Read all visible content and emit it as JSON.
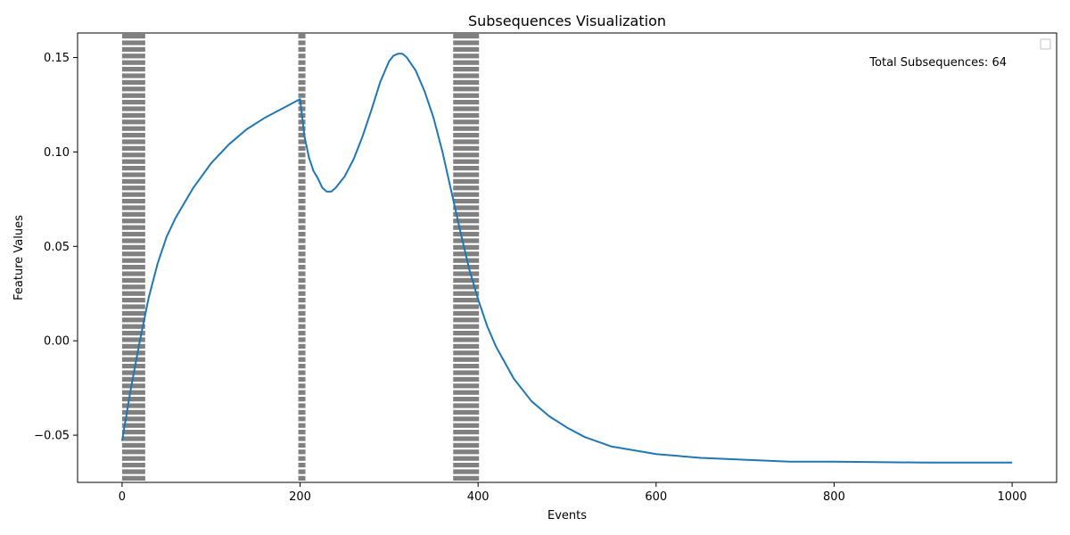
{
  "chart_data": {
    "type": "line",
    "title": "Subsequences Visualization",
    "xlabel": "Events",
    "ylabel": "Feature Values",
    "xlim": [
      -50,
      1050
    ],
    "ylim": [
      -0.075,
      0.163
    ],
    "x_ticks": [
      0,
      200,
      400,
      600,
      800,
      1000
    ],
    "x_tick_labels": [
      "0",
      "200",
      "400",
      "600",
      "800",
      "1000"
    ],
    "y_ticks": [
      -0.05,
      0.0,
      0.05,
      0.1,
      0.15
    ],
    "y_tick_labels": [
      "−0.05",
      "0.00",
      "0.05",
      "0.10",
      "0.15"
    ],
    "annotation": "Total Subsequences: 64",
    "legend": {
      "placement": "top-right",
      "entries": []
    },
    "grid": false,
    "series_color": "#1f77b4",
    "shade_color": "#808080",
    "shaded_regions": [
      {
        "x_start": 0,
        "x_end": 26
      },
      {
        "x_start": 198,
        "x_end": 206
      },
      {
        "x_start": 372,
        "x_end": 401
      }
    ],
    "series": [
      {
        "x": [
          0,
          10,
          20,
          30,
          40,
          50,
          60,
          80,
          100,
          120,
          140,
          160,
          180,
          200,
          205,
          210,
          215,
          220,
          225,
          230,
          235,
          240,
          250,
          260,
          270,
          280,
          290,
          300,
          305,
          310,
          315,
          320,
          330,
          340,
          350,
          360,
          370,
          380,
          390,
          400,
          410,
          420,
          440,
          460,
          480,
          500,
          520,
          550,
          600,
          650,
          700,
          750,
          800,
          900,
          1000
        ],
        "y": [
          -0.053,
          -0.025,
          0.0,
          0.023,
          0.041,
          0.055,
          0.065,
          0.081,
          0.094,
          0.104,
          0.112,
          0.118,
          0.123,
          0.128,
          0.108,
          0.097,
          0.09,
          0.086,
          0.081,
          0.079,
          0.079,
          0.081,
          0.087,
          0.096,
          0.108,
          0.122,
          0.137,
          0.148,
          0.151,
          0.152,
          0.152,
          0.15,
          0.143,
          0.132,
          0.118,
          0.1,
          0.079,
          0.058,
          0.038,
          0.022,
          0.008,
          -0.003,
          -0.02,
          -0.032,
          -0.04,
          -0.046,
          -0.051,
          -0.056,
          -0.06,
          -0.062,
          -0.063,
          -0.064,
          -0.064,
          -0.0645,
          -0.0645
        ]
      }
    ]
  }
}
